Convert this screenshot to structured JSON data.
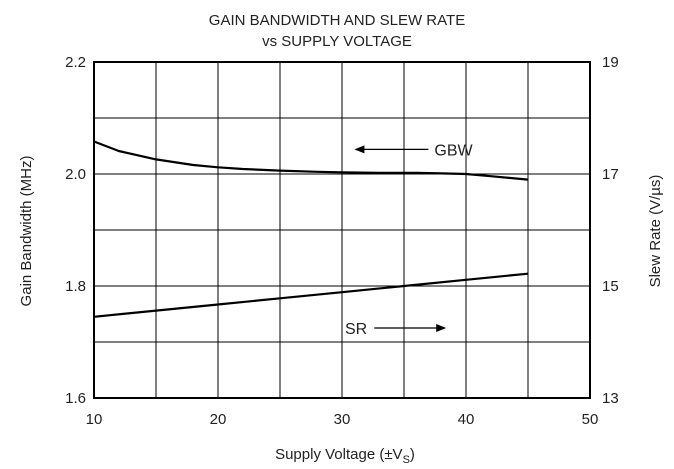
{
  "chart_data": {
    "type": "line",
    "title": "GAIN BANDWIDTH AND SLEW RATE",
    "subtitle": "vs SUPPLY VOLTAGE",
    "xlabel_prefix": "Supply Voltage (±V",
    "xlabel_sub": "S",
    "xlabel_suffix": ")",
    "ylabel_left": "Gain Bandwidth (MHz)",
    "ylabel_right": "Slew Rate (V/µs)",
    "xlim": [
      10,
      50
    ],
    "ylim_left": [
      1.6,
      2.2
    ],
    "ylim_right": [
      13,
      19
    ],
    "x_ticks": [
      "10",
      "20",
      "30",
      "40",
      "50"
    ],
    "y_left_ticks": [
      "1.6",
      "1.8",
      "2.0",
      "2.2"
    ],
    "y_right_ticks": [
      "13",
      "15",
      "17",
      "19"
    ],
    "grid": true,
    "series": [
      {
        "name": "GBW",
        "axis": "left",
        "x": [
          10,
          12,
          15,
          18,
          20,
          22,
          25,
          28,
          30,
          33,
          36,
          38,
          40,
          42,
          45
        ],
        "y": [
          2.058,
          2.041,
          2.026,
          2.016,
          2.012,
          2.009,
          2.006,
          2.004,
          2.003,
          2.002,
          2.002,
          2.001,
          2.0,
          1.996,
          1.99
        ]
      },
      {
        "name": "SR",
        "axis": "right",
        "x": [
          10,
          15,
          20,
          25,
          30,
          35,
          40,
          45
        ],
        "y": [
          14.45,
          14.56,
          14.67,
          14.78,
          14.89,
          15.0,
          15.11,
          15.22
        ]
      }
    ],
    "annotations": [
      {
        "text": "GBW",
        "arrow": "left",
        "x": 36,
        "y": 2.044,
        "axis": "left"
      },
      {
        "text": "SR",
        "arrow": "right",
        "x": 33,
        "y": 14.25,
        "axis": "right"
      }
    ]
  }
}
